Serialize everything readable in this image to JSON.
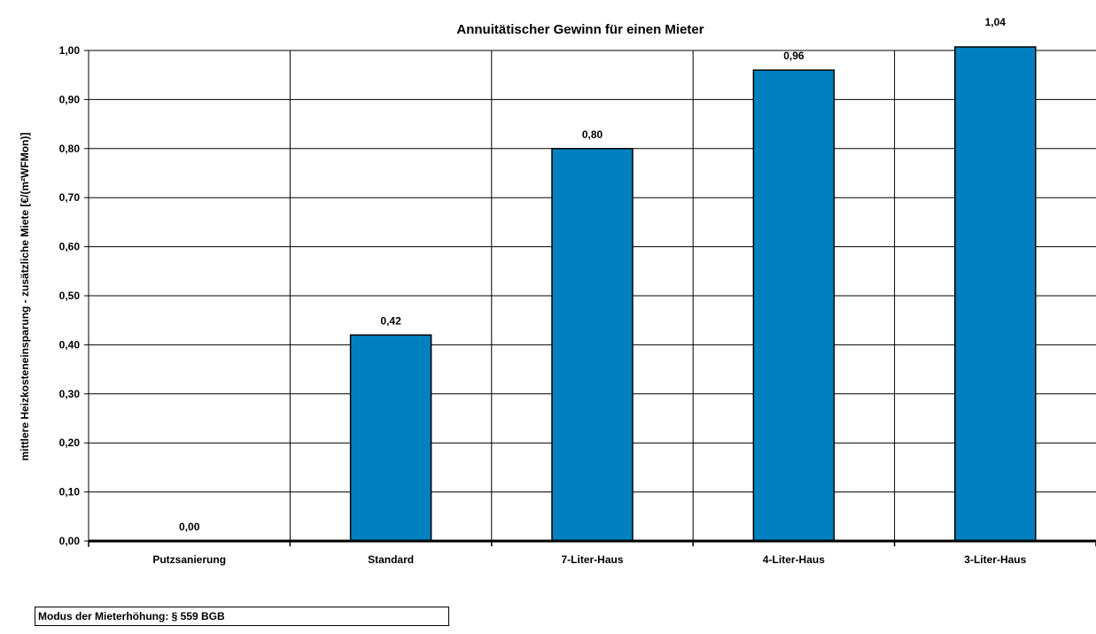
{
  "chart_data": {
    "type": "bar",
    "title": "Annuitätischer Gewinn für einen Mieter",
    "ylabel": "mittlere Heizkosteneinsparung - zusätzliche Miete [€/(m²WFMon)]",
    "xlabel": "",
    "categories": [
      "Putzsanierung",
      "Standard",
      "7-Liter-Haus",
      "4-Liter-Haus",
      "3-Liter-Haus"
    ],
    "values": [
      0.0,
      0.42,
      0.8,
      0.96,
      1.04
    ],
    "value_labels": [
      "0,00",
      "0,42",
      "0,80",
      "0,96",
      "1,04"
    ],
    "ylim": [
      0,
      1.0
    ],
    "yticks": [
      0,
      0.1,
      0.2,
      0.3,
      0.4,
      0.5,
      0.6,
      0.7,
      0.8,
      0.9,
      1.0
    ],
    "ytick_labels": [
      "0,00",
      "0,10",
      "0,20",
      "0,30",
      "0,40",
      "0,50",
      "0,60",
      "0,70",
      "0,80",
      "0,90",
      "1,00"
    ],
    "grid": true,
    "bar_color": "#0080C0",
    "legend": null
  },
  "footer": {
    "mode_label": "Modus der Mieterhöhung: § 559 BGB"
  }
}
